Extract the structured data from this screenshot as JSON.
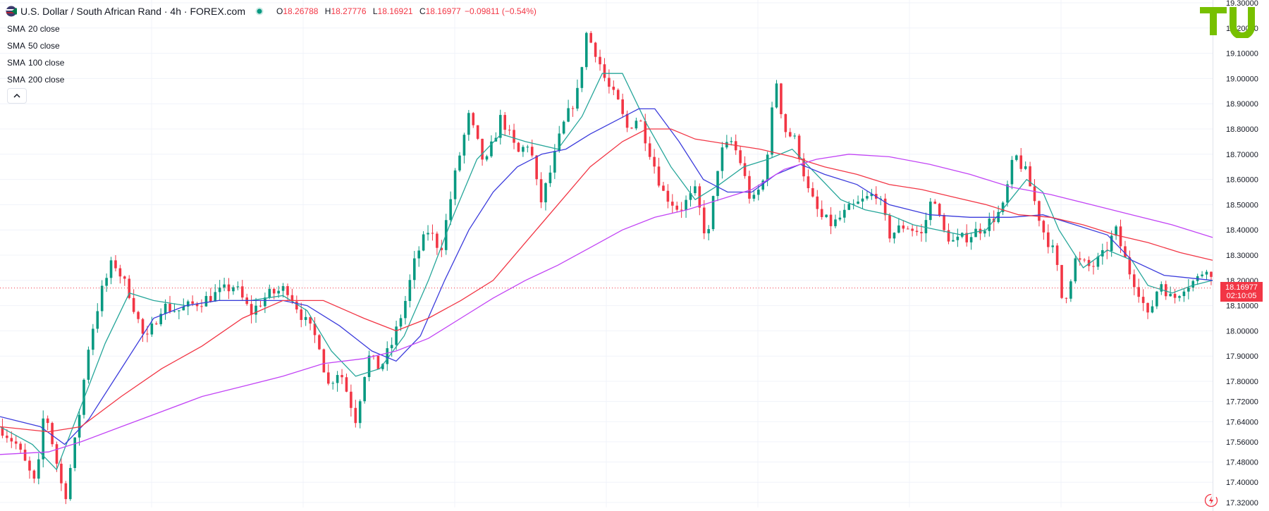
{
  "header": {
    "title": "U.S. Dollar / South African Rand · 4h · FOREX.com",
    "ohlc": [
      {
        "key": "O",
        "value": "18.26788"
      },
      {
        "key": "H",
        "value": "18.27776"
      },
      {
        "key": "L",
        "value": "18.16921"
      },
      {
        "key": "C",
        "value": "18.16977"
      }
    ],
    "change": "−0.09811 (−0.54%)"
  },
  "indicators": [
    {
      "label": "SMA",
      "param": "20 close",
      "color": "#26a69a"
    },
    {
      "label": "SMA",
      "param": "50 close",
      "color": "#3c3cdc"
    },
    {
      "label": "SMA",
      "param": "100 close",
      "color": "#f23645"
    },
    {
      "label": "SMA",
      "param": "200 close",
      "color": "#c244f5"
    }
  ],
  "last_price": {
    "value": "18.16977",
    "countdown": "02:10:05",
    "color": "#f23645"
  },
  "colors": {
    "up": "#089981",
    "down": "#f23645"
  },
  "icons": {
    "symbol": "usd-zar-flag-icon",
    "status": "market-open-dot-icon",
    "collapse": "chevron-up-icon",
    "logo": "tu-logo-icon",
    "power": "lightning-icon"
  },
  "chart_data": {
    "type": "candlestick",
    "title": "U.S. Dollar / South African Rand · 4h · FOREX.com",
    "timeframe": "4h",
    "ylim": [
      17.3,
      19.3
    ],
    "y_ticks": [
      "19.30000",
      "19.20000",
      "19.10000",
      "19.00000",
      "18.90000",
      "18.80000",
      "18.70000",
      "18.60000",
      "18.50000",
      "18.40000",
      "18.30000",
      "18.20000",
      "18.10000",
      "18.00000",
      "17.90000",
      "17.80000",
      "17.72000",
      "17.64000",
      "17.56000",
      "17.48000",
      "17.40000",
      "17.32000"
    ],
    "grid": true,
    "close_path": [
      [
        0,
        17.62
      ],
      [
        20,
        17.55
      ],
      [
        45,
        17.38
      ],
      [
        55,
        17.7
      ],
      [
        70,
        17.48
      ],
      [
        80,
        17.33
      ],
      [
        95,
        17.6
      ],
      [
        110,
        17.95
      ],
      [
        125,
        18.15
      ],
      [
        140,
        18.28
      ],
      [
        160,
        18.15
      ],
      [
        180,
        17.95
      ],
      [
        200,
        18.1
      ],
      [
        220,
        18.08
      ],
      [
        250,
        18.12
      ],
      [
        270,
        18.15
      ],
      [
        290,
        18.18
      ],
      [
        310,
        18.07
      ],
      [
        330,
        18.14
      ],
      [
        355,
        18.17
      ],
      [
        375,
        18.05
      ],
      [
        395,
        17.95
      ],
      [
        405,
        17.78
      ],
      [
        420,
        17.85
      ],
      [
        440,
        17.65
      ],
      [
        455,
        17.9
      ],
      [
        470,
        17.85
      ],
      [
        485,
        17.95
      ],
      [
        500,
        18.1
      ],
      [
        515,
        18.3
      ],
      [
        530,
        18.4
      ],
      [
        545,
        18.32
      ],
      [
        565,
        18.65
      ],
      [
        580,
        18.85
      ],
      [
        600,
        18.65
      ],
      [
        620,
        18.85
      ],
      [
        640,
        18.7
      ],
      [
        655,
        18.75
      ],
      [
        668,
        18.5
      ],
      [
        680,
        18.62
      ],
      [
        695,
        18.8
      ],
      [
        715,
        18.95
      ],
      [
        725,
        19.18
      ],
      [
        738,
        19.1
      ],
      [
        750,
        18.98
      ],
      [
        765,
        18.9
      ],
      [
        775,
        18.8
      ],
      [
        790,
        18.85
      ],
      [
        805,
        18.7
      ],
      [
        820,
        18.55
      ],
      [
        840,
        18.48
      ],
      [
        860,
        18.55
      ],
      [
        875,
        18.35
      ],
      [
        890,
        18.7
      ],
      [
        905,
        18.75
      ],
      [
        915,
        18.68
      ],
      [
        930,
        18.5
      ],
      [
        945,
        18.6
      ],
      [
        960,
        19.0
      ],
      [
        970,
        18.8
      ],
      [
        985,
        18.75
      ],
      [
        1000,
        18.55
      ],
      [
        1015,
        18.45
      ],
      [
        1030,
        18.42
      ],
      [
        1050,
        18.48
      ],
      [
        1070,
        18.52
      ],
      [
        1085,
        18.55
      ],
      [
        1100,
        18.38
      ],
      [
        1120,
        18.42
      ],
      [
        1140,
        18.38
      ],
      [
        1155,
        18.55
      ],
      [
        1165,
        18.4
      ],
      [
        1180,
        18.35
      ],
      [
        1200,
        18.38
      ],
      [
        1220,
        18.42
      ],
      [
        1240,
        18.48
      ],
      [
        1255,
        18.7
      ],
      [
        1270,
        18.62
      ],
      [
        1290,
        18.4
      ],
      [
        1305,
        18.3
      ],
      [
        1315,
        18.1
      ],
      [
        1330,
        18.28
      ],
      [
        1350,
        18.25
      ],
      [
        1365,
        18.3
      ],
      [
        1380,
        18.4
      ],
      [
        1395,
        18.25
      ],
      [
        1410,
        18.15
      ],
      [
        1420,
        18.05
      ],
      [
        1435,
        18.2
      ],
      [
        1450,
        18.12
      ],
      [
        1465,
        18.18
      ],
      [
        1480,
        18.2
      ],
      [
        1495,
        18.27
      ],
      [
        1500,
        18.17
      ]
    ],
    "overlays": [
      {
        "name": "SMA 20 close",
        "color": "#26a69a",
        "values": [
          [
            0,
            17.62
          ],
          [
            40,
            17.55
          ],
          [
            70,
            17.45
          ],
          [
            100,
            17.7
          ],
          [
            130,
            17.95
          ],
          [
            160,
            18.15
          ],
          [
            190,
            18.12
          ],
          [
            230,
            18.1
          ],
          [
            270,
            18.12
          ],
          [
            310,
            18.12
          ],
          [
            350,
            18.14
          ],
          [
            380,
            18.08
          ],
          [
            410,
            17.92
          ],
          [
            440,
            17.82
          ],
          [
            470,
            17.85
          ],
          [
            500,
            17.98
          ],
          [
            530,
            18.2
          ],
          [
            560,
            18.45
          ],
          [
            590,
            18.68
          ],
          [
            620,
            18.78
          ],
          [
            650,
            18.75
          ],
          [
            690,
            18.72
          ],
          [
            720,
            18.85
          ],
          [
            745,
            19.02
          ],
          [
            770,
            19.02
          ],
          [
            800,
            18.82
          ],
          [
            830,
            18.65
          ],
          [
            860,
            18.52
          ],
          [
            890,
            18.58
          ],
          [
            920,
            18.65
          ],
          [
            950,
            18.68
          ],
          [
            980,
            18.72
          ],
          [
            1010,
            18.62
          ],
          [
            1040,
            18.52
          ],
          [
            1070,
            18.48
          ],
          [
            1100,
            18.46
          ],
          [
            1130,
            18.42
          ],
          [
            1160,
            18.4
          ],
          [
            1190,
            18.38
          ],
          [
            1220,
            18.4
          ],
          [
            1250,
            18.52
          ],
          [
            1270,
            18.6
          ],
          [
            1290,
            18.55
          ],
          [
            1310,
            18.4
          ],
          [
            1340,
            18.25
          ],
          [
            1370,
            18.32
          ],
          [
            1400,
            18.28
          ],
          [
            1420,
            18.18
          ],
          [
            1450,
            18.15
          ],
          [
            1475,
            18.18
          ],
          [
            1500,
            18.2
          ]
        ]
      },
      {
        "name": "SMA 50 close",
        "color": "#3c3cdc",
        "values": [
          [
            0,
            17.66
          ],
          [
            50,
            17.62
          ],
          [
            80,
            17.55
          ],
          [
            110,
            17.65
          ],
          [
            150,
            17.85
          ],
          [
            190,
            18.05
          ],
          [
            230,
            18.1
          ],
          [
            270,
            18.12
          ],
          [
            310,
            18.12
          ],
          [
            350,
            18.12
          ],
          [
            380,
            18.1
          ],
          [
            420,
            18.02
          ],
          [
            460,
            17.92
          ],
          [
            490,
            17.88
          ],
          [
            520,
            17.98
          ],
          [
            550,
            18.2
          ],
          [
            580,
            18.4
          ],
          [
            610,
            18.55
          ],
          [
            640,
            18.65
          ],
          [
            670,
            18.7
          ],
          [
            700,
            18.72
          ],
          [
            730,
            18.78
          ],
          [
            760,
            18.83
          ],
          [
            790,
            18.88
          ],
          [
            810,
            18.88
          ],
          [
            840,
            18.75
          ],
          [
            870,
            18.6
          ],
          [
            900,
            18.55
          ],
          [
            930,
            18.55
          ],
          [
            960,
            18.62
          ],
          [
            990,
            18.66
          ],
          [
            1020,
            18.62
          ],
          [
            1060,
            18.58
          ],
          [
            1100,
            18.5
          ],
          [
            1150,
            18.46
          ],
          [
            1200,
            18.45
          ],
          [
            1250,
            18.45
          ],
          [
            1290,
            18.46
          ],
          [
            1330,
            18.42
          ],
          [
            1370,
            18.38
          ],
          [
            1400,
            18.28
          ],
          [
            1440,
            18.22
          ],
          [
            1470,
            18.21
          ],
          [
            1500,
            18.2
          ]
        ]
      },
      {
        "name": "SMA 100 close",
        "color": "#f23645",
        "values": [
          [
            0,
            17.62
          ],
          [
            60,
            17.6
          ],
          [
            100,
            17.62
          ],
          [
            150,
            17.74
          ],
          [
            200,
            17.85
          ],
          [
            250,
            17.94
          ],
          [
            300,
            18.05
          ],
          [
            350,
            18.12
          ],
          [
            400,
            18.12
          ],
          [
            450,
            18.05
          ],
          [
            490,
            18.0
          ],
          [
            530,
            18.05
          ],
          [
            570,
            18.12
          ],
          [
            610,
            18.2
          ],
          [
            650,
            18.35
          ],
          [
            690,
            18.5
          ],
          [
            730,
            18.65
          ],
          [
            770,
            18.75
          ],
          [
            800,
            18.8
          ],
          [
            830,
            18.8
          ],
          [
            860,
            18.76
          ],
          [
            900,
            18.74
          ],
          [
            940,
            18.72
          ],
          [
            980,
            18.69
          ],
          [
            1020,
            18.65
          ],
          [
            1060,
            18.62
          ],
          [
            1100,
            18.58
          ],
          [
            1140,
            18.56
          ],
          [
            1180,
            18.53
          ],
          [
            1220,
            18.5
          ],
          [
            1260,
            18.46
          ],
          [
            1300,
            18.45
          ],
          [
            1340,
            18.42
          ],
          [
            1380,
            18.38
          ],
          [
            1420,
            18.35
          ],
          [
            1460,
            18.31
          ],
          [
            1500,
            18.28
          ]
        ]
      },
      {
        "name": "SMA 200 close",
        "color": "#c244f5",
        "values": [
          [
            0,
            17.51
          ],
          [
            60,
            17.52
          ],
          [
            100,
            17.56
          ],
          [
            150,
            17.62
          ],
          [
            200,
            17.68
          ],
          [
            250,
            17.74
          ],
          [
            300,
            17.78
          ],
          [
            350,
            17.82
          ],
          [
            400,
            17.87
          ],
          [
            450,
            17.89
          ],
          [
            490,
            17.92
          ],
          [
            530,
            17.97
          ],
          [
            570,
            18.05
          ],
          [
            610,
            18.13
          ],
          [
            650,
            18.2
          ],
          [
            690,
            18.26
          ],
          [
            730,
            18.33
          ],
          [
            770,
            18.4
          ],
          [
            810,
            18.45
          ],
          [
            850,
            18.48
          ],
          [
            890,
            18.52
          ],
          [
            930,
            18.56
          ],
          [
            970,
            18.64
          ],
          [
            1010,
            18.68
          ],
          [
            1050,
            18.7
          ],
          [
            1100,
            18.69
          ],
          [
            1150,
            18.66
          ],
          [
            1200,
            18.62
          ],
          [
            1250,
            18.57
          ],
          [
            1300,
            18.54
          ],
          [
            1350,
            18.5
          ],
          [
            1400,
            18.46
          ],
          [
            1450,
            18.42
          ],
          [
            1500,
            18.37
          ]
        ]
      }
    ]
  }
}
